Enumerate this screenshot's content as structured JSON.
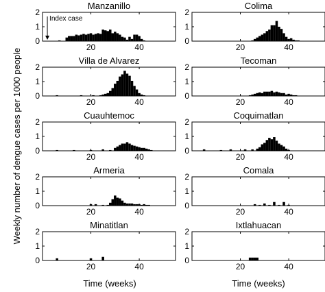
{
  "figure": {
    "ylabel": "Weekly number of dengue cases per 1000 people",
    "xlabel": "Time (weeks)"
  },
  "chart_data": [
    {
      "type": "bar",
      "title": "Manzanillo",
      "xlim": [
        0,
        55
      ],
      "ylim": [
        0,
        2
      ],
      "xticks": [
        20,
        40
      ],
      "yticks": [
        0,
        1,
        2
      ],
      "annotation": {
        "text": "Index case",
        "x": 2
      },
      "x": [
        7,
        10,
        11,
        12,
        13,
        14,
        15,
        16,
        17,
        18,
        19,
        20,
        21,
        22,
        23,
        24,
        25,
        26,
        27,
        28,
        29,
        30,
        31,
        32,
        33,
        34,
        35,
        36,
        37,
        38,
        39,
        40,
        41,
        42
      ],
      "values": [
        0.05,
        0.25,
        0.35,
        0.35,
        0.35,
        0.45,
        0.4,
        0.45,
        0.5,
        0.45,
        0.5,
        0.55,
        0.45,
        0.5,
        0.55,
        0.5,
        0.8,
        0.75,
        0.7,
        0.8,
        0.55,
        0.65,
        0.55,
        0.45,
        0.3,
        0.25,
        0.1,
        0.3,
        0.15,
        0.45,
        0.45,
        0.35,
        0.15,
        0.05
      ]
    },
    {
      "type": "bar",
      "title": "Colima",
      "xlim": [
        0,
        55
      ],
      "ylim": [
        0,
        2
      ],
      "xticks": [
        20,
        40
      ],
      "yticks": [
        0,
        1,
        2
      ],
      "x": [
        25,
        26,
        27,
        28,
        29,
        30,
        31,
        32,
        33,
        34,
        35,
        36,
        37,
        38,
        39,
        40,
        41,
        42,
        43,
        44
      ],
      "values": [
        0.05,
        0.15,
        0.25,
        0.35,
        0.45,
        0.55,
        0.7,
        0.8,
        1.1,
        1.1,
        1.4,
        1.0,
        0.85,
        0.55,
        0.3,
        0.15,
        0.2,
        0.1,
        0.05,
        0.05
      ]
    },
    {
      "type": "bar",
      "title": "Villa de Alvarez",
      "xlim": [
        0,
        55
      ],
      "ylim": [
        0,
        2
      ],
      "xticks": [
        20,
        40
      ],
      "yticks": [
        0,
        1,
        2
      ],
      "x": [
        6,
        16,
        21,
        24,
        25,
        26,
        27,
        28,
        29,
        30,
        31,
        32,
        33,
        34,
        35,
        36,
        37,
        38,
        39,
        40,
        41,
        42
      ],
      "values": [
        0.05,
        0.05,
        0.05,
        0.05,
        0.1,
        0.15,
        0.2,
        0.35,
        0.55,
        0.85,
        1.05,
        1.35,
        1.5,
        1.75,
        1.55,
        1.4,
        1.05,
        0.7,
        0.45,
        0.2,
        0.1,
        0.05
      ]
    },
    {
      "type": "bar",
      "title": "Tecoman",
      "xlim": [
        0,
        55
      ],
      "ylim": [
        0,
        2
      ],
      "xticks": [
        20,
        40
      ],
      "yticks": [
        0,
        1,
        2
      ],
      "x": [
        24,
        25,
        26,
        27,
        28,
        29,
        30,
        31,
        32,
        33,
        34,
        35,
        36,
        37,
        38,
        39,
        40,
        41,
        42,
        43
      ],
      "values": [
        0.05,
        0.1,
        0.15,
        0.2,
        0.25,
        0.2,
        0.3,
        0.3,
        0.3,
        0.35,
        0.25,
        0.3,
        0.25,
        0.2,
        0.2,
        0.1,
        0.15,
        0.1,
        0.05,
        0.05
      ]
    },
    {
      "type": "bar",
      "title": "Cuauhtemoc",
      "xlim": [
        0,
        55
      ],
      "ylim": [
        0,
        2
      ],
      "xticks": [
        20,
        40
      ],
      "yticks": [
        0,
        1,
        2
      ],
      "x": [
        6,
        13,
        20,
        25,
        28,
        30,
        31,
        32,
        33,
        34,
        35,
        36,
        37,
        38,
        39,
        40,
        41,
        42,
        43,
        44,
        45
      ],
      "values": [
        0.05,
        0.05,
        0.05,
        0.1,
        0.05,
        0.2,
        0.3,
        0.4,
        0.5,
        0.5,
        0.6,
        0.5,
        0.4,
        0.35,
        0.3,
        0.25,
        0.2,
        0.2,
        0.15,
        0.1,
        0.05
      ]
    },
    {
      "type": "bar",
      "title": "Coquimatlan",
      "xlim": [
        0,
        55
      ],
      "ylim": [
        0,
        2
      ],
      "xticks": [
        20,
        40
      ],
      "yticks": [
        0,
        1,
        2
      ],
      "x": [
        5,
        12,
        16,
        22,
        25,
        27,
        28,
        29,
        30,
        31,
        32,
        33,
        34,
        35,
        36,
        37,
        38,
        39,
        40
      ],
      "values": [
        0.1,
        0.05,
        0.1,
        0.1,
        0.1,
        0.15,
        0.25,
        0.45,
        0.55,
        0.75,
        0.9,
        0.8,
        0.95,
        0.7,
        0.5,
        0.4,
        0.3,
        0.15,
        0.05
      ]
    },
    {
      "type": "bar",
      "title": "Armeria",
      "xlim": [
        0,
        55
      ],
      "ylim": [
        0,
        2
      ],
      "xticks": [
        20,
        40
      ],
      "yticks": [
        0,
        1,
        2
      ],
      "x": [
        20,
        22,
        25,
        27,
        28,
        29,
        30,
        31,
        32,
        33,
        34,
        35,
        36,
        37,
        38,
        39,
        40,
        41,
        42,
        43,
        44
      ],
      "values": [
        0.1,
        0.1,
        0.05,
        0.05,
        0.2,
        0.45,
        0.7,
        0.55,
        0.5,
        0.35,
        0.2,
        0.15,
        0.15,
        0.15,
        0.1,
        0.1,
        0.1,
        0.05,
        0.1,
        0.05,
        0.05
      ]
    },
    {
      "type": "bar",
      "title": "Comala",
      "xlim": [
        0,
        55
      ],
      "ylim": [
        0,
        2
      ],
      "xticks": [
        20,
        40
      ],
      "yticks": [
        0,
        1,
        2
      ],
      "x": [
        26,
        28,
        30,
        32,
        34,
        36,
        38,
        40
      ],
      "values": [
        0.1,
        0.05,
        0.15,
        0.05,
        0.25,
        0.05,
        0.25,
        0.05
      ]
    },
    {
      "type": "bar",
      "title": "Minatitlan",
      "xlim": [
        0,
        55
      ],
      "ylim": [
        0,
        2
      ],
      "xticks": [
        20,
        40
      ],
      "yticks": [
        0,
        1,
        2
      ],
      "x": [
        6,
        20,
        25
      ],
      "values": [
        0.15,
        0.15,
        0.25
      ]
    },
    {
      "type": "bar",
      "title": "Ixtlahuacan",
      "xlim": [
        0,
        55
      ],
      "ylim": [
        0,
        2
      ],
      "xticks": [
        20,
        40
      ],
      "yticks": [
        0,
        1,
        2
      ],
      "x": [
        24,
        25,
        26,
        27
      ],
      "values": [
        0.2,
        0.2,
        0.2,
        0.2
      ]
    }
  ]
}
